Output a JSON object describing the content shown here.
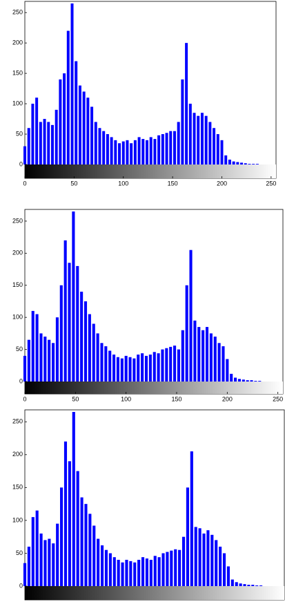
{
  "chart_data": [
    {
      "type": "bar",
      "color": "#0000ff",
      "xlim": [
        0,
        255
      ],
      "ylim": [
        0,
        265
      ],
      "xticks": [
        0,
        50,
        100,
        150,
        200,
        250
      ],
      "yticks": [
        0,
        50,
        100,
        150,
        200,
        250
      ],
      "x": [
        0,
        4,
        8,
        12,
        16,
        20,
        24,
        28,
        32,
        36,
        40,
        44,
        48,
        52,
        56,
        60,
        64,
        68,
        72,
        76,
        80,
        84,
        88,
        92,
        96,
        100,
        104,
        108,
        112,
        116,
        120,
        124,
        128,
        132,
        136,
        140,
        144,
        148,
        152,
        156,
        160,
        164,
        168,
        172,
        176,
        180,
        184,
        188,
        192,
        196,
        200,
        204,
        208,
        212,
        216,
        220,
        224,
        228,
        232,
        236,
        240,
        244,
        248,
        252
      ],
      "values": [
        30,
        60,
        100,
        110,
        70,
        75,
        70,
        65,
        90,
        140,
        150,
        220,
        265,
        170,
        130,
        120,
        110,
        95,
        70,
        60,
        55,
        50,
        45,
        40,
        35,
        38,
        40,
        35,
        40,
        45,
        42,
        40,
        45,
        42,
        48,
        50,
        52,
        55,
        55,
        70,
        140,
        200,
        100,
        85,
        80,
        85,
        80,
        70,
        60,
        50,
        40,
        15,
        8,
        5,
        4,
        3,
        2,
        1,
        1,
        1,
        0,
        0,
        0,
        0
      ]
    },
    {
      "type": "bar",
      "color": "#0000ff",
      "xlim": [
        0,
        255
      ],
      "ylim": [
        0,
        265
      ],
      "xticks": [
        0,
        50,
        100,
        150,
        200,
        250
      ],
      "yticks": [
        0,
        50,
        100,
        150,
        200,
        250
      ],
      "x": [
        0,
        4,
        8,
        12,
        16,
        20,
        24,
        28,
        32,
        36,
        40,
        44,
        48,
        52,
        56,
        60,
        64,
        68,
        72,
        76,
        80,
        84,
        88,
        92,
        96,
        100,
        104,
        108,
        112,
        116,
        120,
        124,
        128,
        132,
        136,
        140,
        144,
        148,
        152,
        156,
        160,
        164,
        168,
        172,
        176,
        180,
        184,
        188,
        192,
        196,
        200,
        204,
        208,
        212,
        216,
        220,
        224,
        228,
        232,
        236,
        240,
        244,
        248,
        252
      ],
      "values": [
        40,
        65,
        110,
        105,
        75,
        70,
        65,
        60,
        100,
        150,
        220,
        185,
        265,
        180,
        140,
        125,
        105,
        90,
        75,
        60,
        55,
        48,
        42,
        38,
        36,
        40,
        38,
        36,
        42,
        44,
        40,
        42,
        46,
        44,
        50,
        52,
        54,
        56,
        50,
        80,
        150,
        205,
        95,
        85,
        80,
        85,
        75,
        70,
        60,
        55,
        35,
        12,
        6,
        4,
        3,
        2,
        2,
        1,
        1,
        0,
        0,
        0,
        0,
        0
      ]
    },
    {
      "type": "bar",
      "color": "#0000ff",
      "xlim": [
        0,
        255
      ],
      "ylim": [
        0,
        265
      ],
      "yticks": [
        0,
        50,
        100,
        150,
        200,
        250
      ],
      "x": [
        0,
        4,
        8,
        12,
        16,
        20,
        24,
        28,
        32,
        36,
        40,
        44,
        48,
        52,
        56,
        60,
        64,
        68,
        72,
        76,
        80,
        84,
        88,
        92,
        96,
        100,
        104,
        108,
        112,
        116,
        120,
        124,
        128,
        132,
        136,
        140,
        144,
        148,
        152,
        156,
        160,
        164,
        168,
        172,
        176,
        180,
        184,
        188,
        192,
        196,
        200,
        204,
        208,
        212,
        216,
        220,
        224,
        228,
        232,
        236,
        240,
        244,
        248,
        252
      ],
      "values": [
        35,
        60,
        105,
        115,
        80,
        70,
        72,
        65,
        95,
        150,
        220,
        190,
        265,
        175,
        135,
        125,
        110,
        92,
        72,
        62,
        55,
        50,
        44,
        40,
        36,
        40,
        38,
        36,
        40,
        44,
        42,
        40,
        46,
        44,
        50,
        52,
        54,
        56,
        55,
        75,
        150,
        205,
        90,
        88,
        80,
        85,
        78,
        70,
        60,
        50,
        30,
        10,
        6,
        4,
        3,
        2,
        2,
        1,
        1,
        0,
        0,
        0,
        0,
        0
      ]
    }
  ]
}
